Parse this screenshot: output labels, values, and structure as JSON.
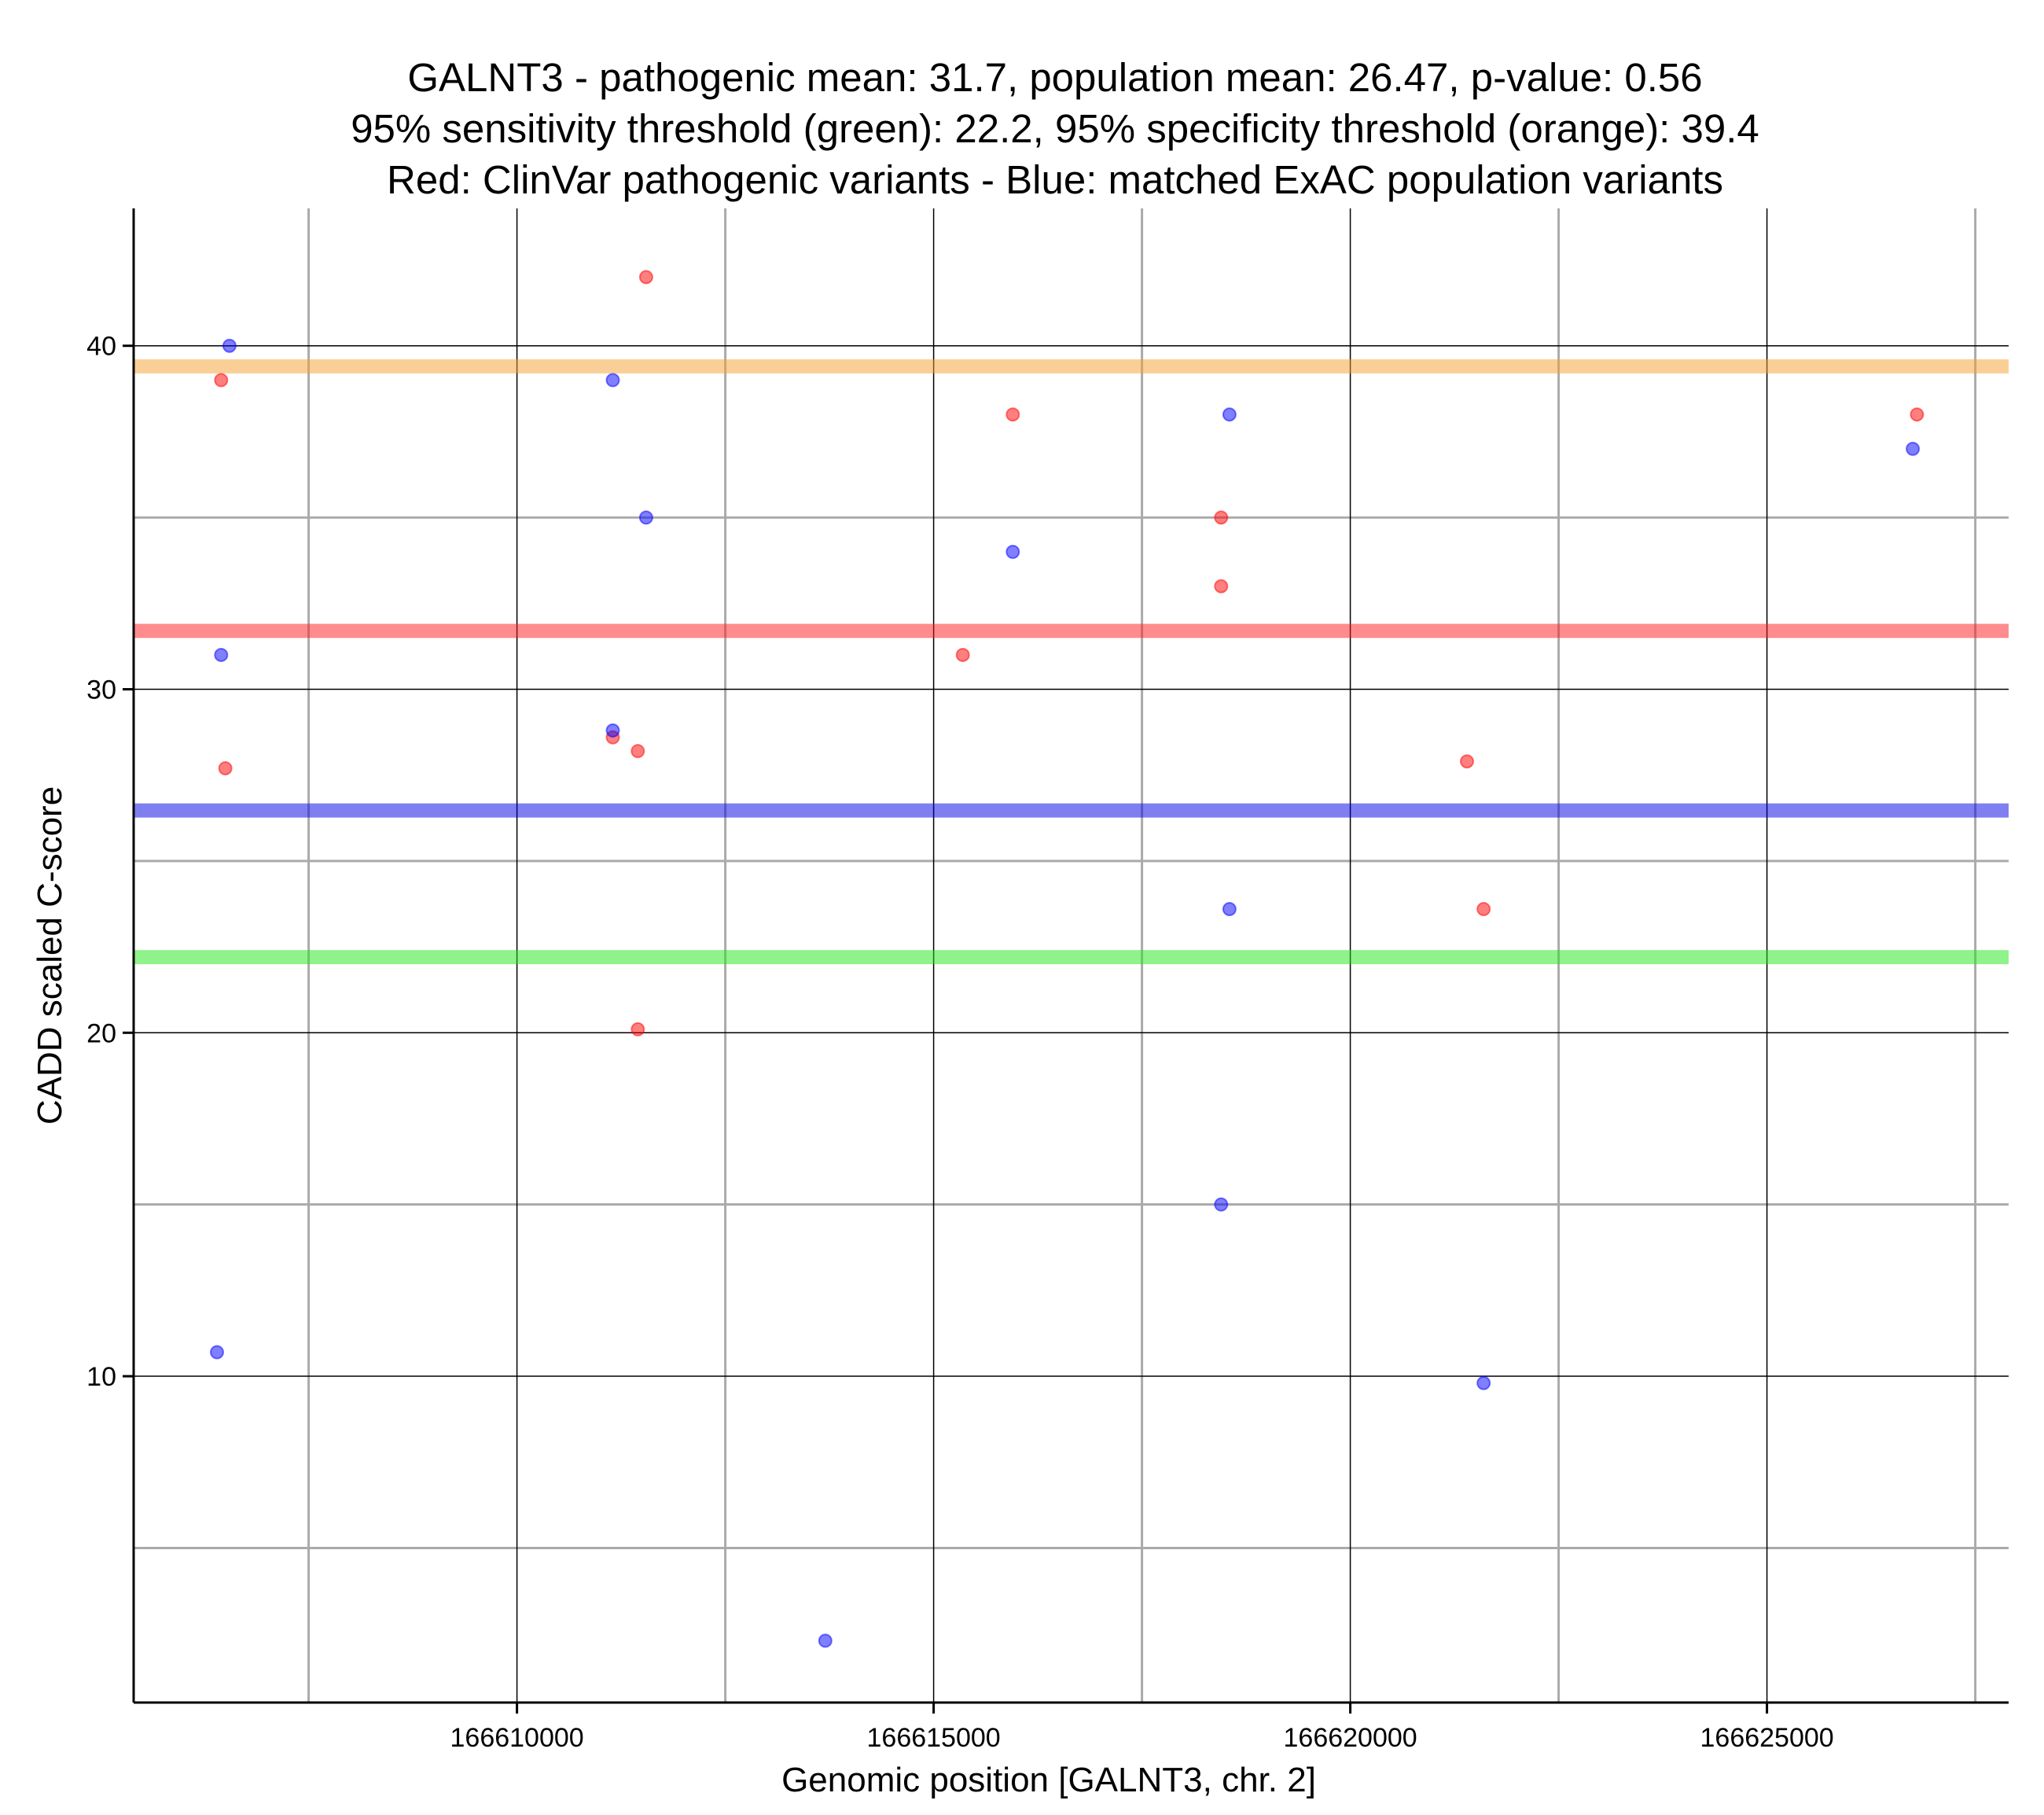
{
  "chart_data": {
    "type": "scatter",
    "title": [
      "GALNT3 - pathogenic mean: 31.7, population mean: 26.47, p-value: 0.56",
      "95% sensitivity threshold (green): 22.2, 95% specificity threshold (orange): 39.4",
      "Red: ClinVar pathogenic variants - Blue: matched ExAC population variants"
    ],
    "xlabel": "Genomic position [GALNT3, chr. 2]",
    "ylabel": "CADD scaled C-score",
    "xlim": [
      166605400,
      166627900
    ],
    "ylim": [
      0.5,
      44
    ],
    "x_ticks": [
      166610000,
      166615000,
      166620000,
      166625000
    ],
    "x_tick_labels": [
      "166610000",
      "166615000",
      "166620000",
      "166625000"
    ],
    "x_minor_ticks": [
      166607500,
      166612500,
      166617500,
      166622500,
      166627500
    ],
    "y_ticks": [
      10,
      20,
      30,
      40
    ],
    "y_tick_labels": [
      "10",
      "20",
      "30",
      "40"
    ],
    "y_minor_ticks": [
      5,
      15,
      25,
      35
    ],
    "grid": true,
    "hlines": [
      {
        "name": "specificity-threshold",
        "value": 39.4,
        "color": "#f5a030"
      },
      {
        "name": "pathogenic-mean",
        "value": 31.7,
        "color": "#ff1a1a"
      },
      {
        "name": "population-mean",
        "value": 26.47,
        "color": "#0000e6"
      },
      {
        "name": "sensitivity-threshold",
        "value": 22.2,
        "color": "#22e616"
      }
    ],
    "series": [
      {
        "name": "ClinVar pathogenic variants",
        "color": "#ff0000",
        "points": [
          {
            "x": 166606450,
            "y": 39.0
          },
          {
            "x": 166606500,
            "y": 27.7
          },
          {
            "x": 166611150,
            "y": 28.6
          },
          {
            "x": 166611450,
            "y": 28.2
          },
          {
            "x": 166611450,
            "y": 20.1
          },
          {
            "x": 166611550,
            "y": 42.0
          },
          {
            "x": 166615350,
            "y": 31.0
          },
          {
            "x": 166615950,
            "y": 38.0
          },
          {
            "x": 166618450,
            "y": 35.0
          },
          {
            "x": 166618450,
            "y": 33.0
          },
          {
            "x": 166621400,
            "y": 27.9
          },
          {
            "x": 166621600,
            "y": 23.6
          },
          {
            "x": 166626800,
            "y": 38.0
          }
        ]
      },
      {
        "name": "matched ExAC population variants",
        "color": "#0000ff",
        "points": [
          {
            "x": 166606550,
            "y": 40.0
          },
          {
            "x": 166606450,
            "y": 31.0
          },
          {
            "x": 166606400,
            "y": 10.7
          },
          {
            "x": 166611150,
            "y": 39.0
          },
          {
            "x": 166611150,
            "y": 28.8
          },
          {
            "x": 166611550,
            "y": 35.0
          },
          {
            "x": 166613700,
            "y": 2.3
          },
          {
            "x": 166615950,
            "y": 34.0
          },
          {
            "x": 166618550,
            "y": 38.0
          },
          {
            "x": 166618550,
            "y": 23.6
          },
          {
            "x": 166618450,
            "y": 15.0
          },
          {
            "x": 166621600,
            "y": 9.8
          },
          {
            "x": 166626750,
            "y": 37.0
          }
        ]
      }
    ]
  }
}
